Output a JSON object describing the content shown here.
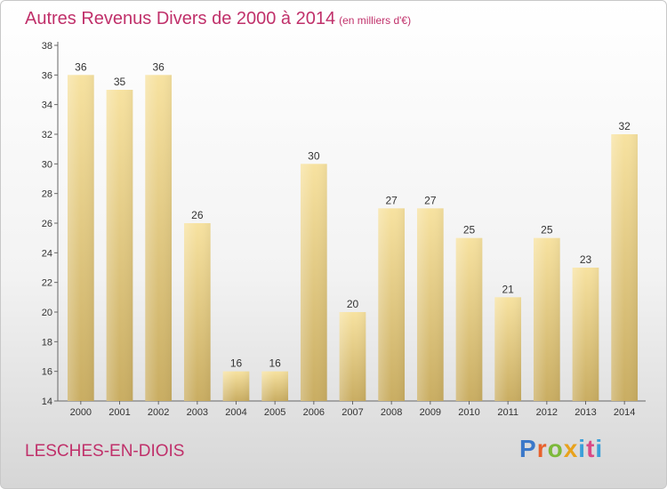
{
  "title": "Autres Revenus Divers de 2000 à 2014",
  "subtitle": "(en milliers d'€)",
  "location": "LESCHES-EN-DIOIS",
  "logo": {
    "p": "P",
    "r": "r",
    "o": "o",
    "x": "x",
    "i": "i",
    "t": "t",
    "i2": "i"
  },
  "chart_data": {
    "type": "bar",
    "categories": [
      "2000",
      "2001",
      "2002",
      "2003",
      "2004",
      "2005",
      "2006",
      "2007",
      "2008",
      "2009",
      "2010",
      "2011",
      "2012",
      "2013",
      "2014"
    ],
    "values": [
      36,
      35,
      36,
      26,
      16,
      16,
      30,
      20,
      27,
      27,
      25,
      21,
      25,
      23,
      32
    ],
    "ylim": [
      14,
      38
    ],
    "yticks": [
      14,
      16,
      18,
      20,
      22,
      24,
      26,
      28,
      30,
      32,
      34,
      36,
      38
    ],
    "grid": false,
    "bar_color": "#e8cf88"
  }
}
